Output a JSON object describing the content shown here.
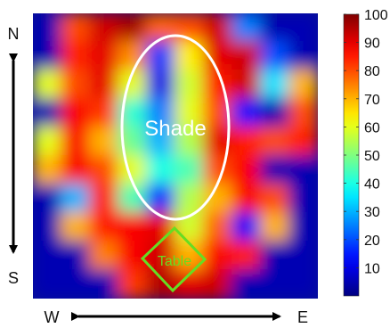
{
  "chart_data": {
    "type": "heatmap",
    "colormap": "jet",
    "color_range": [
      0,
      100
    ],
    "colorbar": {
      "position": "right",
      "ticks": [
        10,
        20,
        30,
        40,
        50,
        60,
        70,
        80,
        90,
        100
      ]
    },
    "grid": false,
    "rows": 10,
    "cols": 10,
    "values": [
      [
        5,
        80,
        92,
        96,
        78,
        80,
        92,
        25,
        5,
        5
      ],
      [
        5,
        84,
        90,
        74,
        18,
        64,
        90,
        92,
        20,
        5
      ],
      [
        60,
        80,
        90,
        60,
        10,
        58,
        85,
        92,
        35,
        70
      ],
      [
        5,
        88,
        82,
        42,
        25,
        60,
        80,
        15,
        5,
        80
      ],
      [
        60,
        88,
        70,
        48,
        30,
        55,
        90,
        85,
        80,
        85
      ],
      [
        70,
        88,
        80,
        60,
        40,
        45,
        80,
        88,
        5,
        5
      ],
      [
        5,
        30,
        85,
        45,
        15,
        55,
        70,
        88,
        80,
        5
      ],
      [
        5,
        70,
        85,
        88,
        90,
        58,
        78,
        12,
        70,
        5
      ],
      [
        5,
        5,
        75,
        88,
        92,
        70,
        88,
        85,
        5,
        5
      ],
      [
        5,
        5,
        5,
        82,
        95,
        90,
        92,
        5,
        5,
        5
      ]
    ],
    "annotations": [
      {
        "label": "Shade",
        "shape": "ellipse",
        "color": "#ffffff"
      },
      {
        "label": "Table",
        "shape": "diamond",
        "color": "#66dd22"
      }
    ],
    "axis_labels": {
      "north": "N",
      "south": "S",
      "west": "W",
      "east": "E"
    }
  }
}
